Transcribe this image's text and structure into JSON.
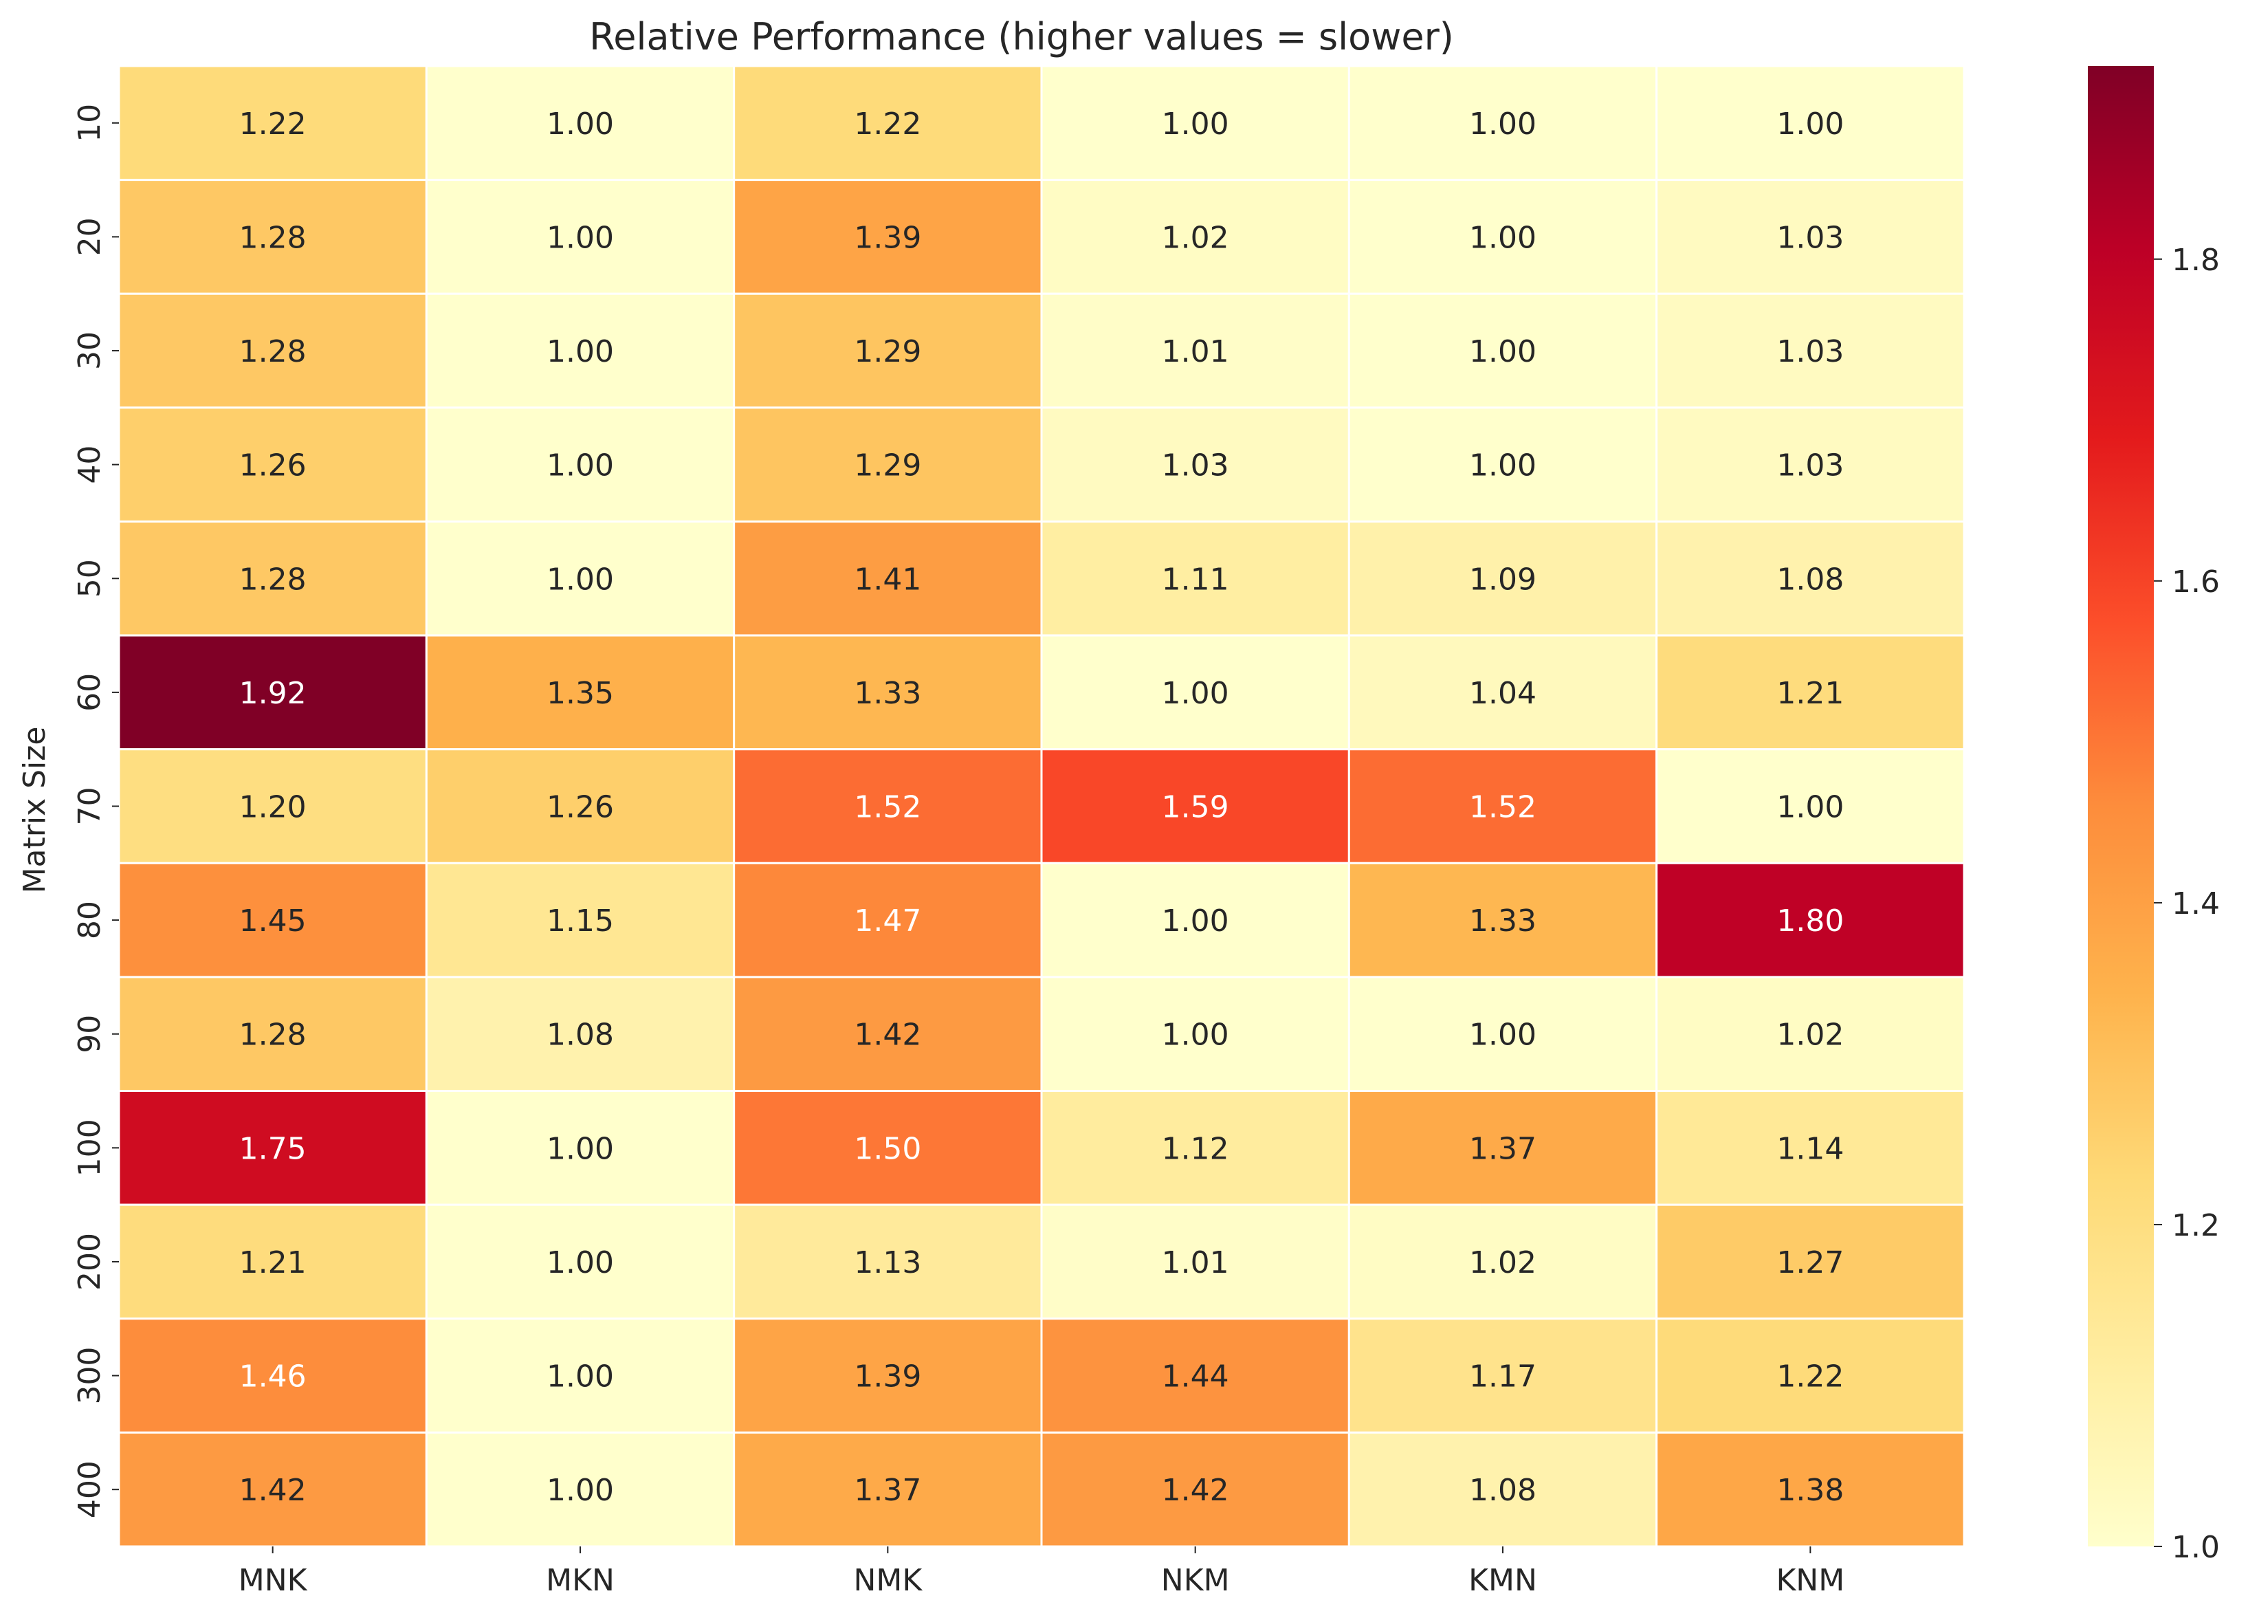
{
  "chart_data": {
    "type": "heatmap",
    "title": "Relative Performance (higher values = slower)",
    "xlabel": "",
    "ylabel": "Matrix Size",
    "x_categories": [
      "MNK",
      "MKN",
      "NMK",
      "NKM",
      "KMN",
      "KNM"
    ],
    "y_categories": [
      "10",
      "20",
      "30",
      "40",
      "50",
      "60",
      "70",
      "80",
      "90",
      "100",
      "200",
      "300",
      "400"
    ],
    "values": [
      [
        1.22,
        1.0,
        1.22,
        1.0,
        1.0,
        1.0
      ],
      [
        1.28,
        1.0,
        1.39,
        1.02,
        1.0,
        1.03
      ],
      [
        1.28,
        1.0,
        1.29,
        1.01,
        1.0,
        1.03
      ],
      [
        1.26,
        1.0,
        1.29,
        1.03,
        1.0,
        1.03
      ],
      [
        1.28,
        1.0,
        1.41,
        1.11,
        1.09,
        1.08
      ],
      [
        1.92,
        1.35,
        1.33,
        1.0,
        1.04,
        1.21
      ],
      [
        1.2,
        1.26,
        1.52,
        1.59,
        1.52,
        1.0
      ],
      [
        1.45,
        1.15,
        1.47,
        1.0,
        1.33,
        1.8
      ],
      [
        1.28,
        1.08,
        1.42,
        1.0,
        1.0,
        1.02
      ],
      [
        1.75,
        1.0,
        1.5,
        1.12,
        1.37,
        1.14
      ],
      [
        1.21,
        1.0,
        1.13,
        1.01,
        1.02,
        1.27
      ],
      [
        1.46,
        1.0,
        1.39,
        1.44,
        1.17,
        1.22
      ],
      [
        1.42,
        1.0,
        1.37,
        1.42,
        1.08,
        1.38
      ]
    ],
    "value_format": "0.00",
    "colormap": "YlOrRd",
    "colormap_stops": [
      "#ffffcc",
      "#ffeda0",
      "#fed976",
      "#feb24c",
      "#fd8d3c",
      "#fc4e2a",
      "#e31a1c",
      "#bd0026",
      "#800026"
    ],
    "color_range": [
      1.0,
      1.92
    ],
    "colorbar_ticks": [
      1.0,
      1.2,
      1.4,
      1.6,
      1.8
    ],
    "colorbar_tick_labels": [
      "1.0",
      "1.2",
      "1.4",
      "1.6",
      "1.8"
    ],
    "cell_border_color": "#ffffff",
    "grid": false,
    "legend": "colorbar-right"
  }
}
